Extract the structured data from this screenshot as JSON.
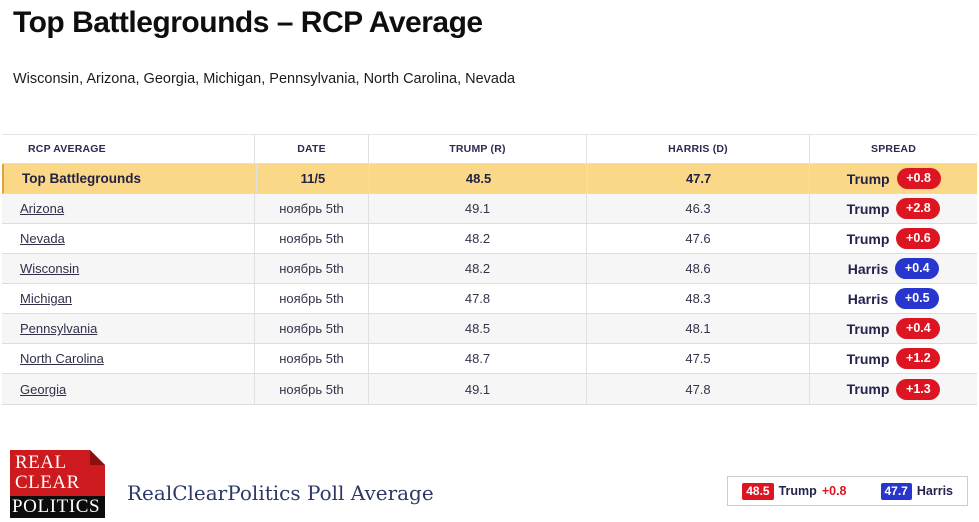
{
  "page": {
    "title": "Top Battlegrounds – RCP Average",
    "subtitle": "Wisconsin, Arizona, Georgia, Michigan, Pennsylvania, North Carolina, Nevada"
  },
  "table": {
    "headers": [
      "RCP AVERAGE",
      "DATE",
      "TRUMP (R)",
      "HARRIS (D)",
      "SPREAD"
    ],
    "rows": [
      {
        "name": "Top Battlegrounds",
        "date": "11/5",
        "trump": "48.5",
        "harris": "47.7",
        "leader": "Trump",
        "spread": "+0.8",
        "leader_party": "trump"
      },
      {
        "name": "Arizona",
        "date": "ноябрь 5th",
        "trump": "49.1",
        "harris": "46.3",
        "leader": "Trump",
        "spread": "+2.8",
        "leader_party": "trump"
      },
      {
        "name": "Nevada",
        "date": "ноябрь 5th",
        "trump": "48.2",
        "harris": "47.6",
        "leader": "Trump",
        "spread": "+0.6",
        "leader_party": "trump"
      },
      {
        "name": "Wisconsin",
        "date": "ноябрь 5th",
        "trump": "48.2",
        "harris": "48.6",
        "leader": "Harris",
        "spread": "+0.4",
        "leader_party": "harris"
      },
      {
        "name": "Michigan",
        "date": "ноябрь 5th",
        "trump": "47.8",
        "harris": "48.3",
        "leader": "Harris",
        "spread": "+0.5",
        "leader_party": "harris"
      },
      {
        "name": "Pennsylvania",
        "date": "ноябрь 5th",
        "trump": "48.5",
        "harris": "48.1",
        "leader": "Trump",
        "spread": "+0.4",
        "leader_party": "trump"
      },
      {
        "name": "North Carolina",
        "date": "ноябрь 5th",
        "trump": "48.7",
        "harris": "47.5",
        "leader": "Trump",
        "spread": "+1.2",
        "leader_party": "trump"
      },
      {
        "name": "Georgia",
        "date": "ноябрь 5th",
        "trump": "49.1",
        "harris": "47.8",
        "leader": "Trump",
        "spread": "+1.3",
        "leader_party": "trump"
      }
    ]
  },
  "footer": {
    "logo": {
      "line1": "REAL",
      "line2": "CLEAR",
      "line3": "POLITICS"
    },
    "caption": "RealClearPolitics Poll Average"
  },
  "legend": {
    "trump_value": "48.5",
    "trump_label": "Trump",
    "trump_spread": "+0.8",
    "harris_value": "47.7",
    "harris_label": "Harris"
  },
  "colors": {
    "trump_red": "#dd1522",
    "harris_blue": "#2836cd",
    "highlight_yellow": "#fbd887"
  }
}
